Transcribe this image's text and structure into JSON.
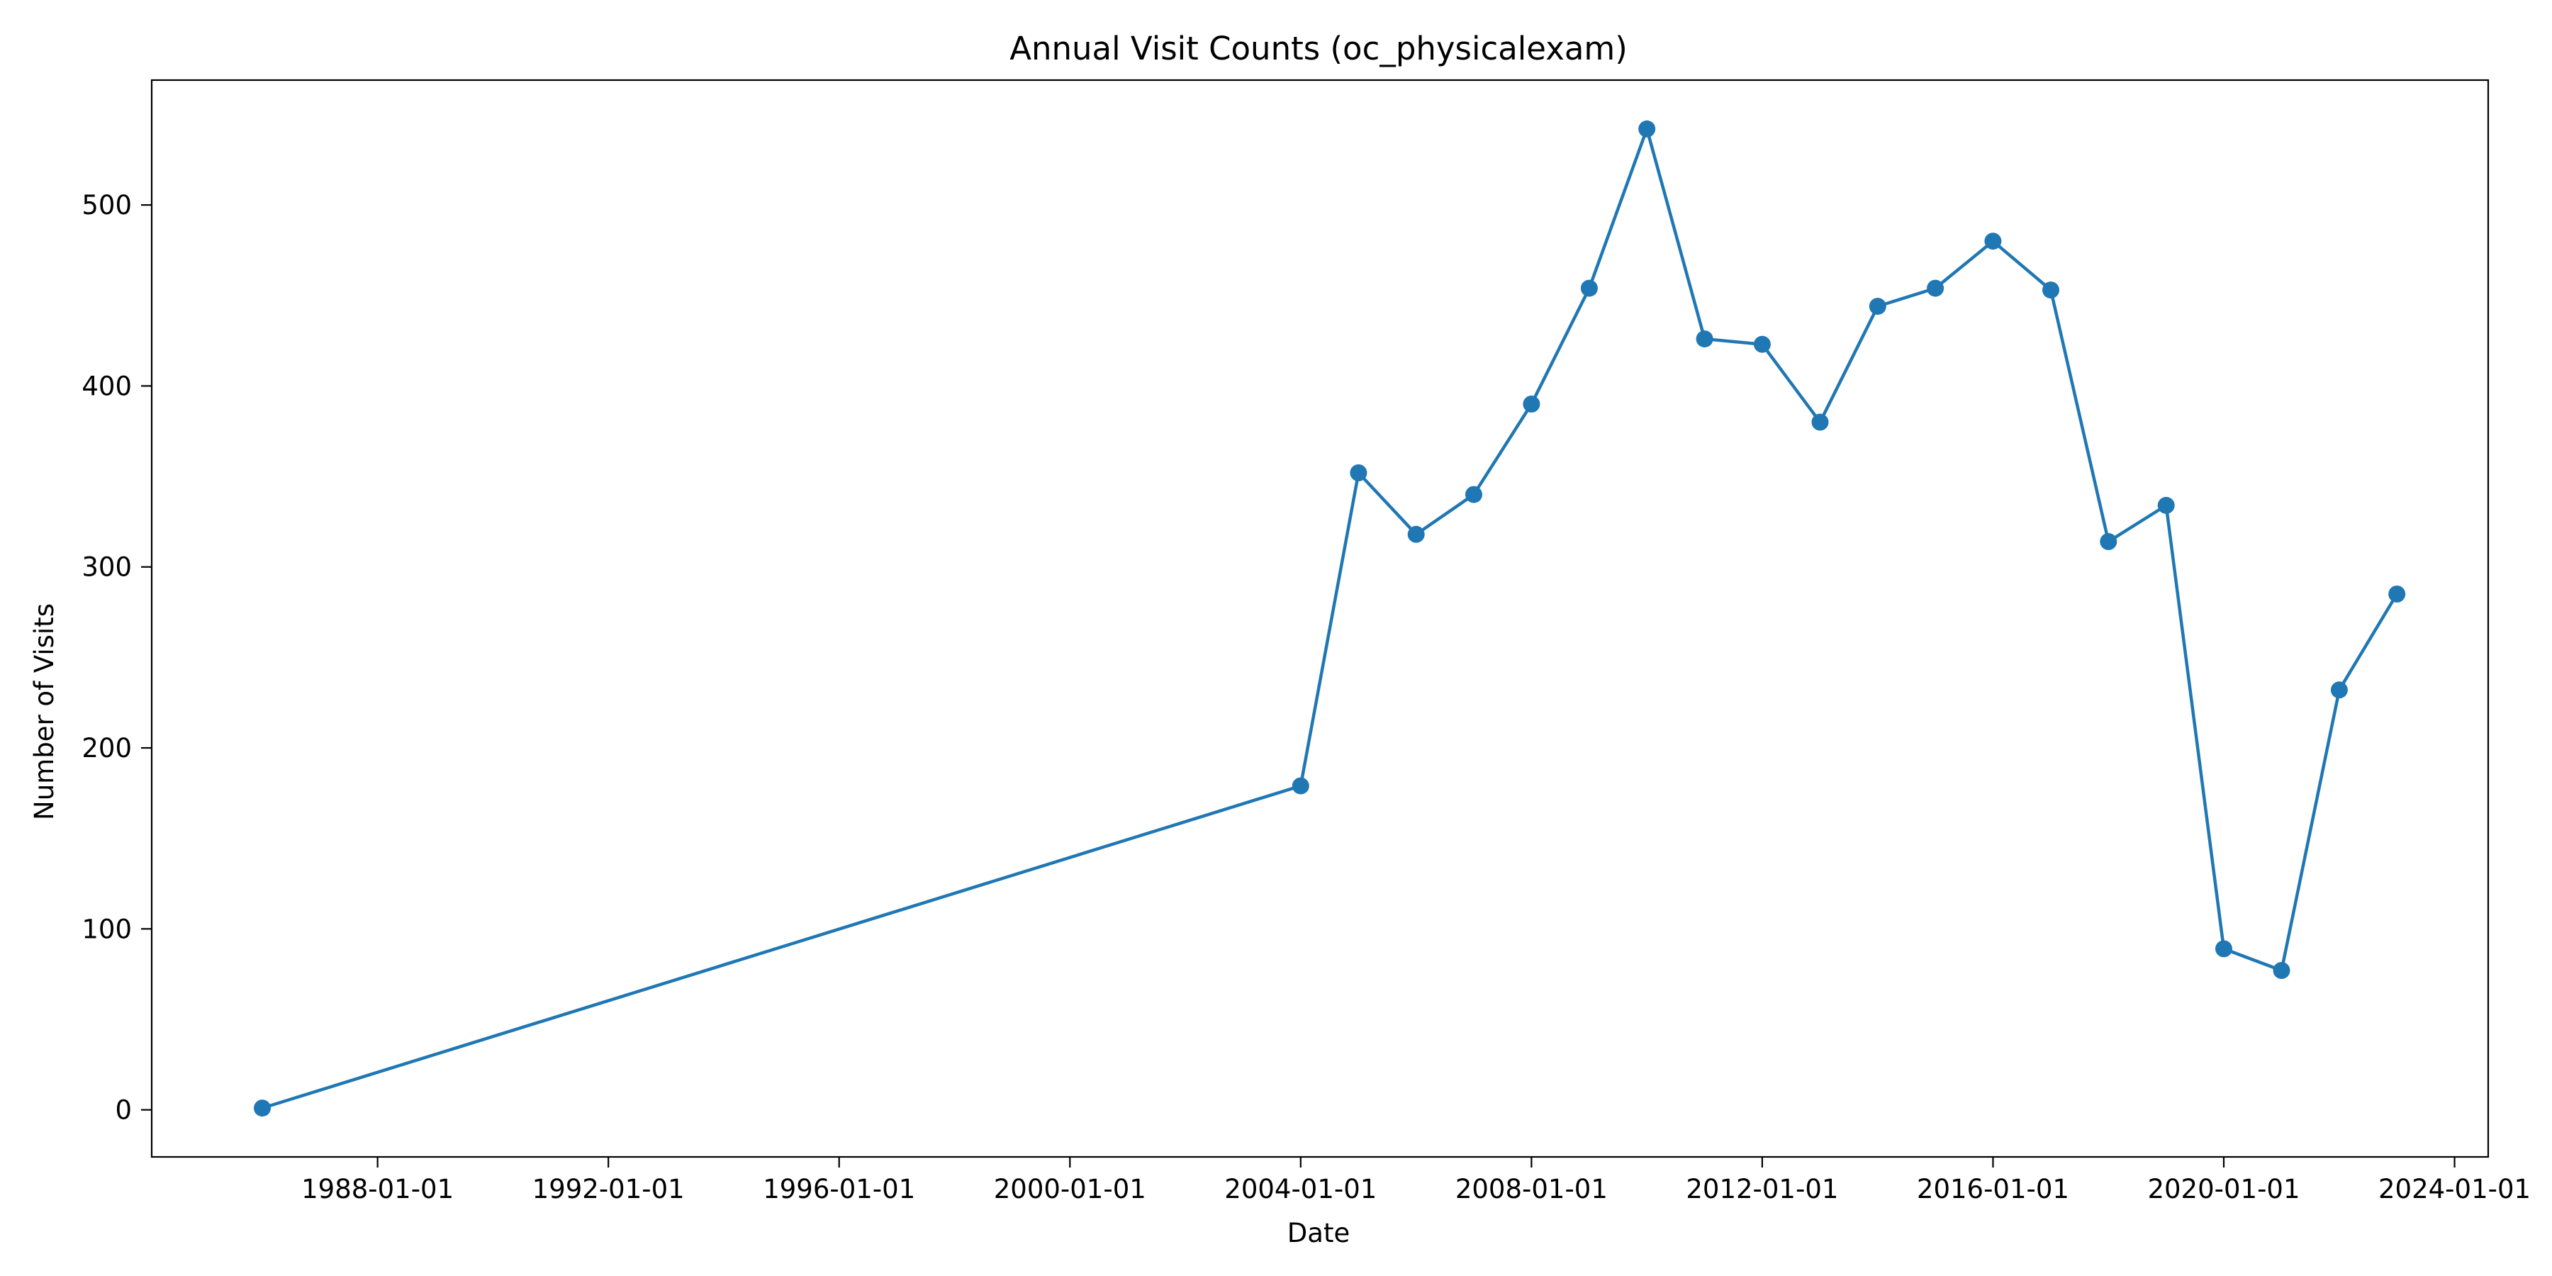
{
  "chart_data": {
    "type": "line",
    "title": "Annual Visit Counts (oc_physicalexam)",
    "xlabel": "Date",
    "ylabel": "Number of Visits",
    "x_scale": "date",
    "xlim": [
      "1984-02-01",
      "2024-08-01"
    ],
    "ylim": [
      -26,
      569
    ],
    "x_ticks": [
      "1988-01-01",
      "1992-01-01",
      "1996-01-01",
      "2000-01-01",
      "2004-01-01",
      "2008-01-01",
      "2012-01-01",
      "2016-01-01",
      "2020-01-01",
      "2024-01-01"
    ],
    "y_ticks": [
      0,
      100,
      200,
      300,
      400,
      500
    ],
    "grid": false,
    "legend": "none",
    "series": [
      {
        "color": "#1f77b4",
        "marker": "circle",
        "points": [
          {
            "x": "1986-01-01",
            "y": 1
          },
          {
            "x": "2004-01-01",
            "y": 179
          },
          {
            "x": "2005-01-01",
            "y": 352
          },
          {
            "x": "2006-01-01",
            "y": 318
          },
          {
            "x": "2007-01-01",
            "y": 340
          },
          {
            "x": "2008-01-01",
            "y": 390
          },
          {
            "x": "2009-01-01",
            "y": 454
          },
          {
            "x": "2010-01-01",
            "y": 542
          },
          {
            "x": "2011-01-01",
            "y": 426
          },
          {
            "x": "2012-01-01",
            "y": 423
          },
          {
            "x": "2013-01-01",
            "y": 380
          },
          {
            "x": "2014-01-01",
            "y": 444
          },
          {
            "x": "2015-01-01",
            "y": 454
          },
          {
            "x": "2016-01-01",
            "y": 480
          },
          {
            "x": "2017-01-01",
            "y": 453
          },
          {
            "x": "2018-01-01",
            "y": 314
          },
          {
            "x": "2019-01-01",
            "y": 334
          },
          {
            "x": "2020-01-01",
            "y": 89
          },
          {
            "x": "2021-01-01",
            "y": 77
          },
          {
            "x": "2022-01-01",
            "y": 232
          },
          {
            "x": "2023-01-01",
            "y": 285
          }
        ]
      }
    ]
  }
}
